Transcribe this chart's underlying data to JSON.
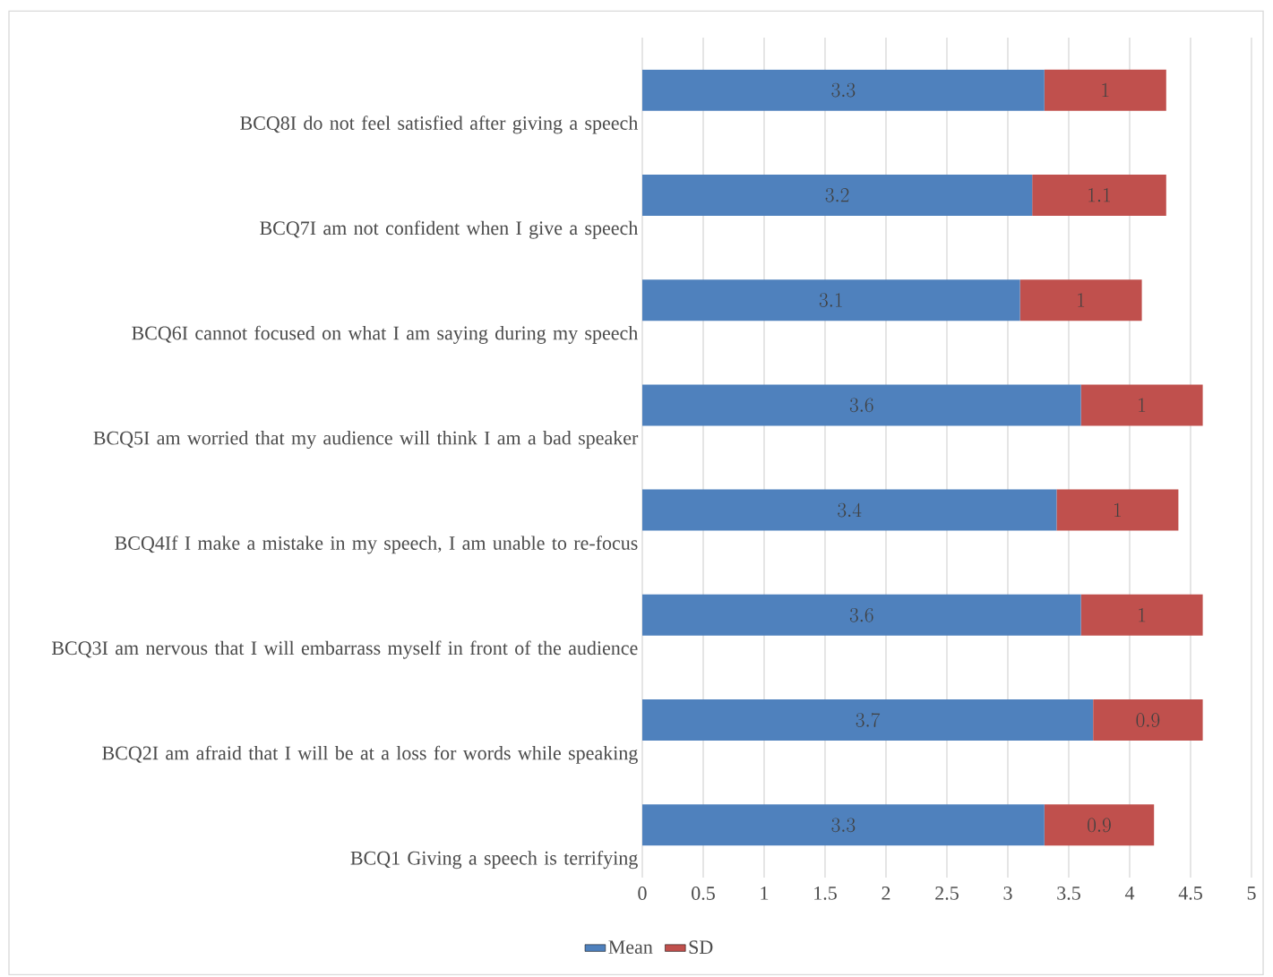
{
  "chart_data": {
    "type": "bar",
    "orientation": "horizontal",
    "stacked": true,
    "data_labels": true,
    "grid": "x",
    "legend": "bottom",
    "categories": [
      "BCQ8I do not feel satisfied after giving a speech",
      "BCQ7I am not confident when I give a speech",
      "BCQ6I cannot focused on what I am saying during my speech",
      "BCQ5I am worried that my audience will think I am a bad speaker",
      "BCQ4If I make a mistake in my speech, I am unable to re-focus",
      "BCQ3I am nervous that I will embarrass myself in front of the audience",
      "BCQ2I am afraid that I will be at a loss for words while speaking",
      "BCQ1 Giving a speech is terrifying"
    ],
    "series": [
      {
        "name": "Mean",
        "color": "#4f81bd",
        "values": [
          3.3,
          3.2,
          3.1,
          3.6,
          3.4,
          3.6,
          3.7,
          3.3
        ]
      },
      {
        "name": "SD",
        "color": "#c0504d",
        "values": [
          1,
          1.1,
          1,
          1,
          1,
          1,
          0.9,
          0.9
        ]
      }
    ],
    "xlim": [
      0,
      5
    ],
    "xticks": [
      0,
      0.5,
      1,
      1.5,
      2,
      2.5,
      3,
      3.5,
      4,
      4.5,
      5
    ]
  }
}
